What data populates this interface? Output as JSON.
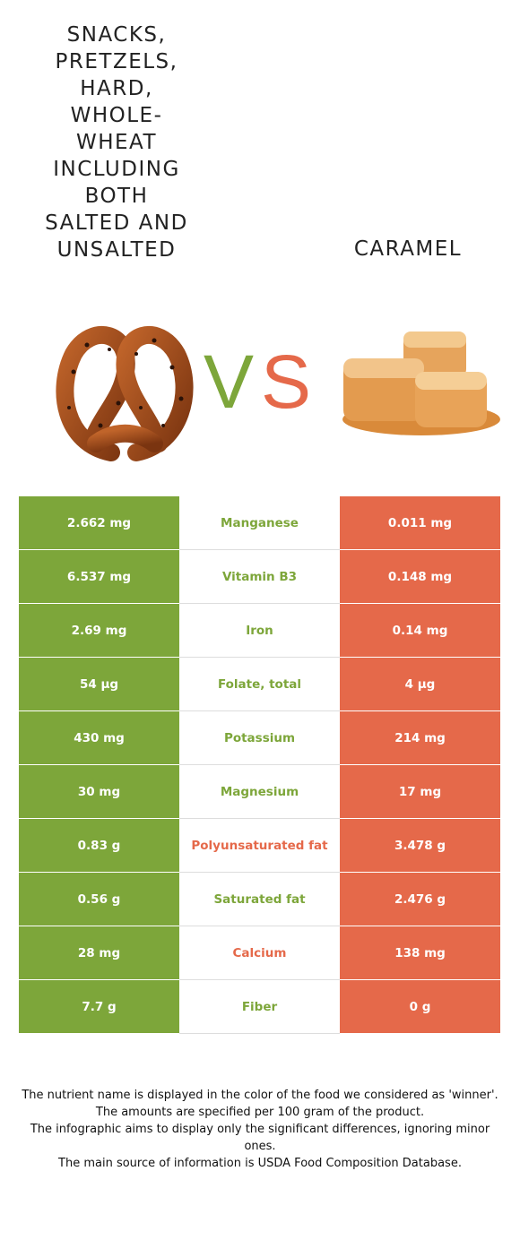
{
  "left_food": {
    "title": "Snacks, pretzels, hard, whole-wheat including both salted and unsalted",
    "color": "#7da63a",
    "image_icon": "pretzel-image"
  },
  "right_food": {
    "title": "Caramel",
    "color": "#e5694a",
    "image_icon": "caramel-image"
  },
  "vs_label": "VS",
  "rows": [
    {
      "left": "2.662 mg",
      "nutrient": "Manganese",
      "right": "0.011 mg",
      "winner": "left"
    },
    {
      "left": "6.537 mg",
      "nutrient": "Vitamin B3",
      "right": "0.148 mg",
      "winner": "left"
    },
    {
      "left": "2.69 mg",
      "nutrient": "Iron",
      "right": "0.14 mg",
      "winner": "left"
    },
    {
      "left": "54 µg",
      "nutrient": "Folate, total",
      "right": "4 µg",
      "winner": "left"
    },
    {
      "left": "430 mg",
      "nutrient": "Potassium",
      "right": "214 mg",
      "winner": "left"
    },
    {
      "left": "30 mg",
      "nutrient": "Magnesium",
      "right": "17 mg",
      "winner": "left"
    },
    {
      "left": "0.83 g",
      "nutrient": "Polyunsaturated fat",
      "right": "3.478 g",
      "winner": "right"
    },
    {
      "left": "0.56 g",
      "nutrient": "Saturated fat",
      "right": "2.476 g",
      "winner": "left"
    },
    {
      "left": "28 mg",
      "nutrient": "Calcium",
      "right": "138 mg",
      "winner": "right"
    },
    {
      "left": "7.7 g",
      "nutrient": "Fiber",
      "right": "0 g",
      "winner": "left"
    }
  ],
  "footnotes": [
    "The nutrient name is displayed in the color of the food we considered as 'winner'.",
    "The amounts are specified per 100 gram of the product.",
    "The infographic aims to display only the significant differences, ignoring minor ones.",
    "The main source of information is USDA Food Composition Database."
  ]
}
